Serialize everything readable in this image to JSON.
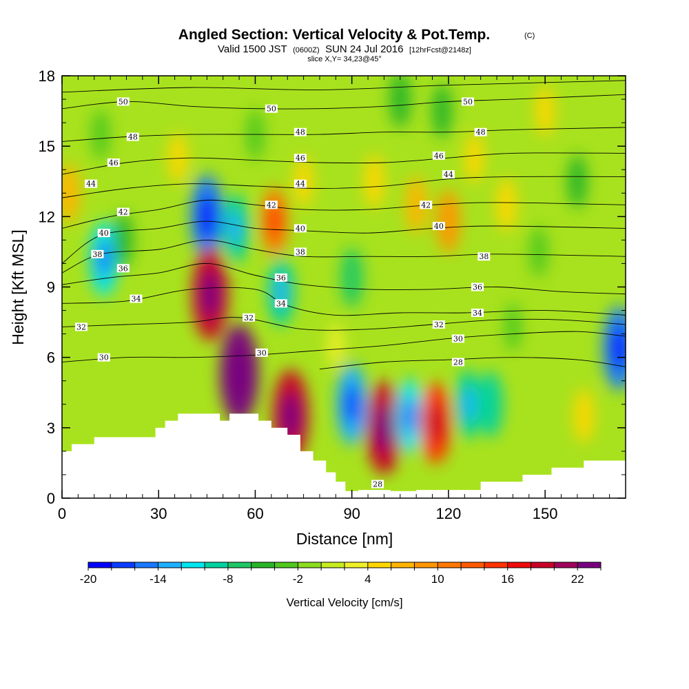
{
  "header": {
    "title": "Angled Section: Vertical Velocity & Pot.Temp.",
    "copyright": "(C)",
    "valid_prefix": "Valid 1500 JST",
    "valid_zulu": "(0600Z)",
    "valid_date": "SUN 24 Jul 2016",
    "forecast_info": "[12hrFcst@2148z]",
    "slice_info": "slice X,Y= 34,23@45°"
  },
  "chart_data": {
    "type": "heatmap",
    "xlabel": "Distance [nm]",
    "ylabel": "Height [Kft MSL]",
    "xlim": [
      0,
      175
    ],
    "ylim": [
      0,
      18
    ],
    "x_ticks": [
      "0",
      "30",
      "60",
      "90",
      "120",
      "150"
    ],
    "x_tick_values": [
      0,
      30,
      60,
      90,
      120,
      150
    ],
    "y_ticks": [
      "0",
      "3",
      "6",
      "9",
      "12",
      "15",
      "18"
    ],
    "y_tick_values": [
      0,
      3,
      6,
      9,
      12,
      15,
      18
    ],
    "colorbar": {
      "title": "Vertical Velocity [cm/s]",
      "min": -20,
      "max": 24,
      "step": 2,
      "tick_labels": [
        "-20",
        "-14",
        "-8",
        "-2",
        "4",
        "10",
        "16",
        "22"
      ],
      "tick_values": [
        -20,
        -14,
        -8,
        -2,
        4,
        10,
        16,
        22
      ],
      "colors": [
        "#0000ff",
        "#0a3cff",
        "#1978ff",
        "#1fb0ff",
        "#00e6f0",
        "#00d2a0",
        "#1ec864",
        "#28b428",
        "#50c81e",
        "#8cdc1e",
        "#c8ec1e",
        "#f0f028",
        "#ffd700",
        "#ffb400",
        "#ff9600",
        "#ff7800",
        "#ff5a00",
        "#ff3200",
        "#f00a0a",
        "#c80028",
        "#a0005a",
        "#780080"
      ]
    },
    "velocity_features": [
      {
        "x": 2,
        "y": 13,
        "value": 7
      },
      {
        "x": 13,
        "y": 10.2,
        "value": -12
      },
      {
        "x": 19,
        "y": 11,
        "value": -5
      },
      {
        "x": 12,
        "y": 15.5,
        "value": -4
      },
      {
        "x": 45,
        "y": 12,
        "value": -15
      },
      {
        "x": 54,
        "y": 11.5,
        "value": -10
      },
      {
        "x": 46,
        "y": 8.7,
        "value": 18
      },
      {
        "x": 36,
        "y": 14.5,
        "value": 4
      },
      {
        "x": 55,
        "y": 5.3,
        "value": 22
      },
      {
        "x": 66,
        "y": 11.8,
        "value": 10
      },
      {
        "x": 68,
        "y": 8.8,
        "value": -10
      },
      {
        "x": 71,
        "y": 3.5,
        "value": 18
      },
      {
        "x": 60,
        "y": 15.5,
        "value": -4
      },
      {
        "x": 75,
        "y": 13.5,
        "value": 4
      },
      {
        "x": 90,
        "y": 9.4,
        "value": -7
      },
      {
        "x": 90,
        "y": 4.0,
        "value": -14
      },
      {
        "x": 100,
        "y": 3.0,
        "value": 18
      },
      {
        "x": 108,
        "y": 3.5,
        "value": -12
      },
      {
        "x": 116,
        "y": 3.2,
        "value": 14
      },
      {
        "x": 126,
        "y": 4.0,
        "value": -10
      },
      {
        "x": 133,
        "y": 4.0,
        "value": -9
      },
      {
        "x": 97,
        "y": 13.5,
        "value": 5
      },
      {
        "x": 110,
        "y": 12.5,
        "value": 6
      },
      {
        "x": 120,
        "y": 11.8,
        "value": 8
      },
      {
        "x": 128,
        "y": 14.5,
        "value": 4
      },
      {
        "x": 138,
        "y": 12.5,
        "value": 5
      },
      {
        "x": 150,
        "y": 16.5,
        "value": 4
      },
      {
        "x": 148,
        "y": 10.5,
        "value": -4
      },
      {
        "x": 105,
        "y": 17,
        "value": -6
      },
      {
        "x": 118,
        "y": 16.5,
        "value": -5
      },
      {
        "x": 160,
        "y": 13.5,
        "value": -5
      },
      {
        "x": 173,
        "y": 6.4,
        "value": -15
      },
      {
        "x": 162,
        "y": 3.5,
        "value": 5
      },
      {
        "x": 140,
        "y": 7.3,
        "value": -3
      },
      {
        "x": 85,
        "y": 6.5,
        "value": 2
      }
    ],
    "theta_contours": [
      {
        "label": "28",
        "points": [
          [
            80,
            5.5
          ],
          [
            100,
            5.8
          ],
          [
            120,
            5.9
          ],
          [
            140,
            6.0
          ],
          [
            160,
            5.9
          ],
          [
            175,
            5.6
          ]
        ]
      },
      {
        "label": "30",
        "points": [
          [
            0,
            5.8
          ],
          [
            20,
            6.0
          ],
          [
            40,
            6.0
          ],
          [
            60,
            6.1
          ],
          [
            80,
            6.3
          ],
          [
            100,
            6.5
          ],
          [
            120,
            6.8
          ],
          [
            140,
            7.0
          ],
          [
            160,
            7.1
          ],
          [
            175,
            6.9
          ]
        ]
      },
      {
        "label": "32",
        "points": [
          [
            0,
            7.3
          ],
          [
            20,
            7.4
          ],
          [
            40,
            7.5
          ],
          [
            55,
            7.7
          ],
          [
            75,
            7.2
          ],
          [
            95,
            7.2
          ],
          [
            115,
            7.4
          ],
          [
            135,
            7.6
          ],
          [
            155,
            7.6
          ],
          [
            175,
            7.4
          ]
        ]
      },
      {
        "label": "34",
        "points": [
          [
            0,
            8.3
          ],
          [
            20,
            8.4
          ],
          [
            40,
            8.9
          ],
          [
            60,
            8.9
          ],
          [
            70,
            8.2
          ],
          [
            85,
            7.8
          ],
          [
            105,
            7.9
          ],
          [
            125,
            7.9
          ],
          [
            150,
            8.0
          ],
          [
            175,
            7.8
          ]
        ]
      },
      {
        "label": "36",
        "points": [
          [
            0,
            9.1
          ],
          [
            15,
            9.4
          ],
          [
            30,
            9.6
          ],
          [
            45,
            10.0
          ],
          [
            60,
            9.5
          ],
          [
            75,
            9.1
          ],
          [
            95,
            8.9
          ],
          [
            115,
            8.9
          ],
          [
            135,
            9.0
          ],
          [
            155,
            8.8
          ],
          [
            175,
            8.7
          ]
        ]
      },
      {
        "label": "38",
        "points": [
          [
            0,
            9.6
          ],
          [
            12,
            10.4
          ],
          [
            30,
            10.6
          ],
          [
            45,
            11.0
          ],
          [
            60,
            10.6
          ],
          [
            75,
            10.3
          ],
          [
            95,
            10.3
          ],
          [
            115,
            10.3
          ],
          [
            135,
            10.4
          ],
          [
            175,
            10.3
          ]
        ]
      },
      {
        "label": "40",
        "points": [
          [
            0,
            10.0
          ],
          [
            12,
            11.2
          ],
          [
            30,
            11.5
          ],
          [
            45,
            11.8
          ],
          [
            60,
            11.5
          ],
          [
            75,
            11.4
          ],
          [
            95,
            11.3
          ],
          [
            115,
            11.5
          ],
          [
            135,
            11.6
          ],
          [
            175,
            11.5
          ]
        ]
      },
      {
        "label": "42",
        "points": [
          [
            0,
            11.5
          ],
          [
            15,
            12.0
          ],
          [
            30,
            12.3
          ],
          [
            45,
            12.7
          ],
          [
            60,
            12.5
          ],
          [
            75,
            12.3
          ],
          [
            95,
            12.3
          ],
          [
            115,
            12.5
          ],
          [
            135,
            12.6
          ],
          [
            175,
            12.5
          ]
        ]
      },
      {
        "label": "44",
        "points": [
          [
            0,
            12.8
          ],
          [
            20,
            13.2
          ],
          [
            40,
            13.4
          ],
          [
            60,
            13.3
          ],
          [
            80,
            13.2
          ],
          [
            100,
            13.3
          ],
          [
            120,
            13.6
          ],
          [
            140,
            13.7
          ],
          [
            175,
            13.7
          ]
        ]
      },
      {
        "label": "46",
        "points": [
          [
            0,
            13.8
          ],
          [
            20,
            14.3
          ],
          [
            40,
            14.5
          ],
          [
            60,
            14.4
          ],
          [
            80,
            14.3
          ],
          [
            100,
            14.3
          ],
          [
            120,
            14.5
          ],
          [
            140,
            14.7
          ],
          [
            175,
            14.7
          ]
        ]
      },
      {
        "label": "48",
        "points": [
          [
            0,
            15.2
          ],
          [
            20,
            15.4
          ],
          [
            40,
            15.5
          ],
          [
            60,
            15.5
          ],
          [
            80,
            15.5
          ],
          [
            100,
            15.6
          ],
          [
            120,
            15.6
          ],
          [
            140,
            15.7
          ],
          [
            175,
            15.8
          ]
        ]
      },
      {
        "label": "50",
        "points": [
          [
            0,
            16.6
          ],
          [
            20,
            16.9
          ],
          [
            40,
            16.7
          ],
          [
            60,
            16.6
          ],
          [
            80,
            16.6
          ],
          [
            100,
            16.7
          ],
          [
            120,
            16.9
          ],
          [
            140,
            17.0
          ],
          [
            175,
            17.2
          ]
        ]
      },
      {
        "label": "",
        "points": [
          [
            0,
            17.3
          ],
          [
            40,
            17.5
          ],
          [
            80,
            17.4
          ],
          [
            120,
            17.6
          ],
          [
            175,
            17.8
          ]
        ]
      }
    ],
    "theta_labels": [
      {
        "text": "50",
        "x": 19,
        "y": 16.9
      },
      {
        "text": "50",
        "x": 65,
        "y": 16.6
      },
      {
        "text": "50",
        "x": 126,
        "y": 16.9
      },
      {
        "text": "48",
        "x": 22,
        "y": 15.4
      },
      {
        "text": "48",
        "x": 74,
        "y": 15.6
      },
      {
        "text": "48",
        "x": 130,
        "y": 15.6
      },
      {
        "text": "46",
        "x": 16,
        "y": 14.3
      },
      {
        "text": "46",
        "x": 74,
        "y": 14.5
      },
      {
        "text": "46",
        "x": 117,
        "y": 14.6
      },
      {
        "text": "44",
        "x": 9,
        "y": 13.4
      },
      {
        "text": "44",
        "x": 74,
        "y": 13.4
      },
      {
        "text": "44",
        "x": 120,
        "y": 13.8
      },
      {
        "text": "42",
        "x": 19,
        "y": 12.2
      },
      {
        "text": "42",
        "x": 65,
        "y": 12.5
      },
      {
        "text": "42",
        "x": 113,
        "y": 12.5
      },
      {
        "text": "40",
        "x": 13,
        "y": 11.3
      },
      {
        "text": "40",
        "x": 74,
        "y": 11.5
      },
      {
        "text": "40",
        "x": 117,
        "y": 11.6
      },
      {
        "text": "38",
        "x": 11,
        "y": 10.4
      },
      {
        "text": "38",
        "x": 74,
        "y": 10.5
      },
      {
        "text": "38",
        "x": 131,
        "y": 10.3
      },
      {
        "text": "36",
        "x": 19,
        "y": 9.8
      },
      {
        "text": "36",
        "x": 68,
        "y": 9.4
      },
      {
        "text": "36",
        "x": 129,
        "y": 9.0
      },
      {
        "text": "34",
        "x": 23,
        "y": 8.5
      },
      {
        "text": "34",
        "x": 68,
        "y": 8.3
      },
      {
        "text": "34",
        "x": 129,
        "y": 7.9
      },
      {
        "text": "32",
        "x": 6,
        "y": 7.3
      },
      {
        "text": "32",
        "x": 58,
        "y": 7.7
      },
      {
        "text": "32",
        "x": 117,
        "y": 7.4
      },
      {
        "text": "30",
        "x": 13,
        "y": 6.0
      },
      {
        "text": "30",
        "x": 62,
        "y": 6.2
      },
      {
        "text": "30",
        "x": 123,
        "y": 6.8
      },
      {
        "text": "28",
        "x": 123,
        "y": 5.8
      },
      {
        "text": "28",
        "x": 98,
        "y": 0.6
      }
    ],
    "terrain": [
      [
        0,
        2.0
      ],
      [
        3,
        2.3
      ],
      [
        10,
        2.6
      ],
      [
        29,
        3.0
      ],
      [
        32,
        3.3
      ],
      [
        36,
        3.6
      ],
      [
        49,
        3.3
      ],
      [
        52,
        3.6
      ],
      [
        61,
        3.3
      ],
      [
        65,
        3.0
      ],
      [
        70,
        2.7
      ],
      [
        74,
        2.0
      ],
      [
        78,
        1.6
      ],
      [
        82,
        1.1
      ],
      [
        85,
        0.7
      ],
      [
        88,
        0.3
      ],
      [
        92,
        0.35
      ],
      [
        102,
        0.3
      ],
      [
        110,
        0.35
      ],
      [
        116,
        0.35
      ],
      [
        130,
        0.7
      ],
      [
        143,
        1.0
      ],
      [
        152,
        1.3
      ],
      [
        162,
        1.6
      ],
      [
        175,
        1.6
      ]
    ]
  }
}
